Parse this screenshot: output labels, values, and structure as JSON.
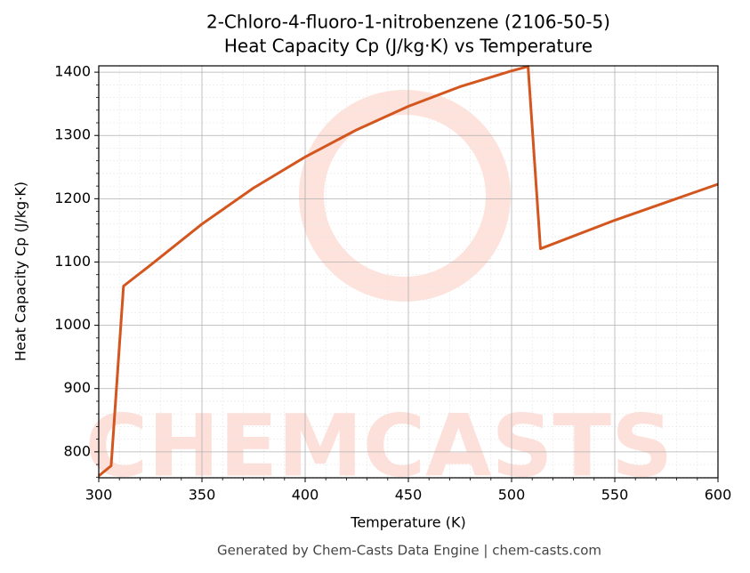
{
  "chart_data": {
    "type": "line",
    "title": "2-Chloro-4-fluoro-1-nitrobenzene (2106-50-5)",
    "subtitle": "Heat Capacity Cp (J/kg·K) vs Temperature",
    "x_label": "Temperature (K)",
    "y_label": "Heat Capacity Cp (J/kg·K)",
    "footer": "Generated by Chem-Casts Data Engine | chem-casts.com",
    "watermark": "CHEMCASTS",
    "x": [
      300,
      306,
      312,
      325,
      350,
      375,
      400,
      425,
      450,
      475,
      500,
      508,
      514,
      550,
      600
    ],
    "series": [
      {
        "name": "Cp",
        "color": "#d4561f",
        "values": [
          762,
          778,
          1062,
          1095,
          1160,
          1217,
          1266,
          1309,
          1346,
          1377,
          1402,
          1409,
          1121,
          1166,
          1223
        ]
      }
    ],
    "xlim": [
      300,
      600
    ],
    "ylim": [
      759,
      1410
    ],
    "xticks": [
      300,
      350,
      400,
      450,
      500,
      550,
      600
    ],
    "yticks": [
      800,
      900,
      1000,
      1100,
      1200,
      1300,
      1400
    ],
    "minor_xticks": [
      310,
      320,
      330,
      340,
      360,
      370,
      380,
      390,
      410,
      420,
      430,
      440,
      460,
      470,
      480,
      490,
      510,
      520,
      530,
      540,
      560,
      570,
      580,
      590
    ],
    "minor_yticks": [
      760,
      780,
      820,
      840,
      860,
      880,
      920,
      940,
      960,
      980,
      1020,
      1040,
      1060,
      1080,
      1120,
      1140,
      1160,
      1180,
      1220,
      1240,
      1260,
      1280,
      1320,
      1340,
      1360,
      1380
    ],
    "grid": true
  }
}
